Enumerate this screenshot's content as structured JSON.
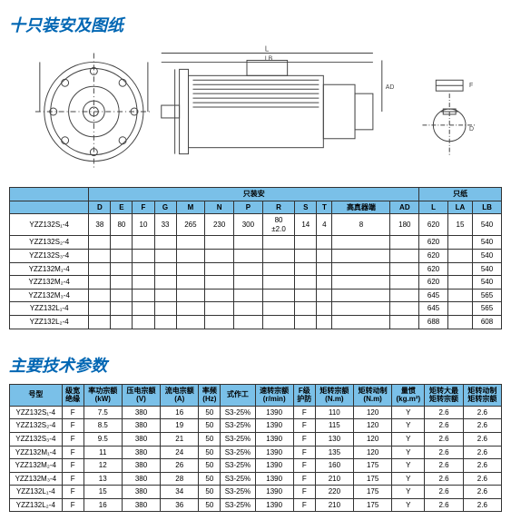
{
  "section1": {
    "title": "十只装安及图纸",
    "table": {
      "group_headers": [
        "",
        "只装安",
        "只纸"
      ],
      "group_spans": [
        1,
        12,
        3
      ],
      "columns": [
        "",
        "D",
        "E",
        "F",
        "G",
        "M",
        "N",
        "P",
        "R",
        "S",
        "T",
        "高真器端",
        "AD",
        "L",
        "LA",
        "LB"
      ],
      "rows": [
        [
          "YZZ132S₁-4",
          "38",
          "80",
          "10",
          "33",
          "265",
          "230",
          "300",
          "80\n±2.0",
          "14",
          "4",
          "8",
          "180",
          "620",
          "15",
          "540"
        ],
        [
          "YZZ132S₂-4",
          "",
          "",
          "",
          "",
          "",
          "",
          "",
          "",
          "",
          "",
          "",
          "",
          "620",
          "",
          "540"
        ],
        [
          "YZZ132S₃-4",
          "",
          "",
          "",
          "",
          "",
          "",
          "",
          "",
          "",
          "",
          "",
          "",
          "620",
          "",
          "540"
        ],
        [
          "YZZ132M₁-4",
          "",
          "",
          "",
          "",
          "",
          "",
          "",
          "",
          "",
          "",
          "",
          "",
          "620",
          "",
          "540"
        ],
        [
          "YZZ132M₂-4",
          "",
          "",
          "",
          "",
          "",
          "",
          "",
          "",
          "",
          "",
          "",
          "",
          "620",
          "",
          "540"
        ],
        [
          "YZZ132M₃-4",
          "",
          "",
          "",
          "",
          "",
          "",
          "",
          "",
          "",
          "",
          "",
          "",
          "645",
          "",
          "565"
        ],
        [
          "YZZ132L₁-4",
          "",
          "",
          "",
          "",
          "",
          "",
          "",
          "",
          "",
          "",
          "",
          "",
          "645",
          "",
          "565"
        ],
        [
          "YZZ132L₂-4",
          "",
          "",
          "",
          "",
          "",
          "",
          "",
          "",
          "",
          "",
          "",
          "",
          "688",
          "",
          "608"
        ]
      ]
    }
  },
  "section2": {
    "title": "主要技术参数",
    "table": {
      "columns": [
        "号型",
        "级宽\n绝缘",
        "率功宗额\n(kW)",
        "压电宗额\n(V)",
        "流电宗额\n(A)",
        "率频\n(Hz)",
        "式作工",
        "速转宗额\n(r/min)",
        "F级\n护防",
        "矩转宗额\n(N.m)",
        "矩转动制\n(N.m)",
        "量惯\n(kg.m²)",
        "矩转大最\n矩转宗额",
        "矩转动制\n矩转宗额"
      ],
      "rows": [
        [
          "YZZ132S₁-4",
          "F",
          "7.5",
          "380",
          "16",
          "50",
          "S3-25%",
          "1390",
          "F",
          "110",
          "120",
          "Y",
          "2.6",
          "2.6"
        ],
        [
          "YZZ132S₂-4",
          "F",
          "8.5",
          "380",
          "19",
          "50",
          "S3-25%",
          "1390",
          "F",
          "115",
          "120",
          "Y",
          "2.6",
          "2.6"
        ],
        [
          "YZZ132S₃-4",
          "F",
          "9.5",
          "380",
          "21",
          "50",
          "S3-25%",
          "1390",
          "F",
          "130",
          "120",
          "Y",
          "2.6",
          "2.6"
        ],
        [
          "YZZ132M₁-4",
          "F",
          "11",
          "380",
          "24",
          "50",
          "S3-25%",
          "1390",
          "F",
          "135",
          "120",
          "Y",
          "2.6",
          "2.6"
        ],
        [
          "YZZ132M₂-4",
          "F",
          "12",
          "380",
          "26",
          "50",
          "S3-25%",
          "1390",
          "F",
          "160",
          "175",
          "Y",
          "2.6",
          "2.6"
        ],
        [
          "YZZ132M₃-4",
          "F",
          "13",
          "380",
          "28",
          "50",
          "S3-25%",
          "1390",
          "F",
          "210",
          "175",
          "Y",
          "2.6",
          "2.6"
        ],
        [
          "YZZ132L₁-4",
          "F",
          "15",
          "380",
          "34",
          "50",
          "S3-25%",
          "1390",
          "F",
          "220",
          "175",
          "Y",
          "2.6",
          "2.6"
        ],
        [
          "YZZ132L₂-4",
          "F",
          "16",
          "380",
          "36",
          "50",
          "S3-25%",
          "1390",
          "F",
          "210",
          "175",
          "Y",
          "2.6",
          "2.6"
        ]
      ]
    }
  },
  "colors": {
    "title_color": "#0066b3",
    "header_bg": "#7ac0e8",
    "border": "#333333",
    "diagram_stroke": "#444444"
  }
}
